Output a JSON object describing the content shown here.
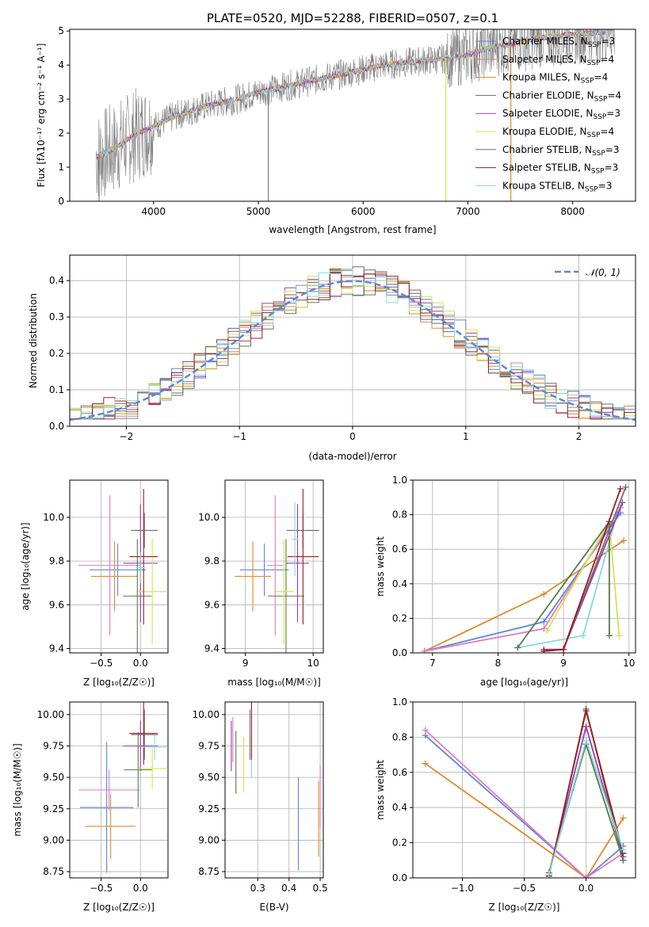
{
  "colors": {
    "chabrier_miles": "#5e86d6",
    "salpeter_miles": "#e0826f",
    "kroupa_miles": "#e08a2e",
    "chabrier_elodie": "#567c4f",
    "salpeter_elodie": "#9b3ab6",
    "kroupa_elodie": "#d4e44b",
    "chabrier_stelib": "#6e6e6e",
    "salpeter_stelib": "#9c1c1c",
    "kroupa_stelib": "#84dada",
    "pink": "#e379c2",
    "normal_curve": "#5e86d6"
  },
  "chart_data": [
    {
      "id": "spectrum",
      "type": "line",
      "title": "PLATE=0520, MJD=52288, FIBERID=0507, z=0.1",
      "xlabel": "wavelength [Angstrom, rest frame]",
      "ylabel": "Flux [f_λ 10^-17 erg cm^-2 s^-1 A^-1]",
      "xlim": [
        3200,
        8600
      ],
      "ylim": [
        0,
        5.05
      ],
      "xticks": [
        "4000",
        "5000",
        "6000",
        "7000",
        "8000"
      ],
      "yticks": [
        "0",
        "1",
        "2",
        "3",
        "4",
        "5"
      ],
      "legend_position": "right",
      "legend": [
        {
          "label": "Chabrier MILES, N",
          "sub": "SSP",
          "tail": "=3",
          "color_key": "chabrier_miles"
        },
        {
          "label": "Salpeter MILES, N",
          "sub": "SSP",
          "tail": "=4",
          "color_key": "salpeter_miles"
        },
        {
          "label": "Kroupa MILES, N",
          "sub": "SSP",
          "tail": "=4",
          "color_key": "kroupa_miles"
        },
        {
          "label": "Chabrier ELODIE, N",
          "sub": "SSP",
          "tail": "=4",
          "color_key": "chabrier_elodie"
        },
        {
          "label": "Salpeter ELODIE, N",
          "sub": "SSP",
          "tail": "=3",
          "color_key": "salpeter_elodie"
        },
        {
          "label": "Kroupa ELODIE, N",
          "sub": "SSP",
          "tail": "=4",
          "color_key": "kroupa_elodie"
        },
        {
          "label": "Chabrier STELIB, N",
          "sub": "SSP",
          "tail": "=3",
          "color_key": "chabrier_stelib"
        },
        {
          "label": "Salpeter STELIB, N",
          "sub": "SSP",
          "tail": "=3",
          "color_key": "salpeter_stelib"
        },
        {
          "label": "Kroupa STELIB, N",
          "sub": "SSP",
          "tail": "=3",
          "color_key": "kroupa_stelib"
        }
      ],
      "x": [
        3450,
        3600,
        3800,
        4000,
        4200,
        4500,
        4800,
        5000,
        5300,
        5600,
        5900,
        6200,
        6500,
        6800,
        7000,
        7200,
        7400,
        7700,
        8000,
        8400
      ],
      "model_y": [
        1.3,
        1.5,
        1.9,
        2.2,
        2.5,
        2.8,
        3.0,
        3.2,
        3.4,
        3.6,
        3.8,
        4.0,
        4.1,
        4.2,
        4.3,
        4.5,
        4.6,
        4.8,
        4.9,
        5.0
      ],
      "spikes": [
        {
          "x": 3480,
          "y": 0
        },
        {
          "x": 5095,
          "y": 0
        },
        {
          "x": 6790,
          "y": 0
        },
        {
          "x": 7410,
          "y": 0
        }
      ]
    },
    {
      "id": "residuals",
      "type": "histogram",
      "xlabel": "(data-model)/error",
      "ylabel": "Normed distribution",
      "xlim": [
        -2.5,
        2.5
      ],
      "ylim": [
        0,
        0.47
      ],
      "xticks": [
        "−2",
        "−1",
        "0",
        "1",
        "2"
      ],
      "yticks": [
        "0.0",
        "0.1",
        "0.2",
        "0.3",
        "0.4"
      ],
      "bin_width": 0.1,
      "legend": "𝒩(0, 1)",
      "legend_position": "top-right",
      "curve": {
        "type": "normal",
        "mean": 0,
        "sigma": 1
      }
    },
    {
      "id": "age_vs_z",
      "type": "errorbar",
      "xlabel": "Z [log₁₀(Z/Z☉)]",
      "ylabel": "age  [log₁₀(age/yr)]",
      "xlim": [
        -0.9,
        0.35
      ],
      "ylim": [
        9.38,
        10.17
      ],
      "xticks": [
        "−0.5",
        "0.0"
      ],
      "yticks": [
        "9.4",
        "9.6",
        "9.8",
        "10.0"
      ],
      "points": [
        {
          "color_key": "chabrier_miles",
          "x": -0.29,
          "xerr": 0.36,
          "y": 9.76,
          "yerr": 0.12
        },
        {
          "color_key": "pink",
          "x": -0.39,
          "xerr": 0.4,
          "y": 9.78,
          "yerr": 0.32
        },
        {
          "color_key": "kroupa_miles",
          "x": -0.33,
          "xerr": 0.3,
          "y": 9.73,
          "yerr": 0.16
        },
        {
          "color_key": "chabrier_elodie",
          "x": -0.04,
          "xerr": 0.18,
          "y": 9.64,
          "yerr": 0.26
        },
        {
          "color_key": "salpeter_elodie",
          "x": 0.0,
          "xerr": 0.22,
          "y": 9.79,
          "yerr": 0.27
        },
        {
          "color_key": "kroupa_elodie",
          "x": 0.15,
          "xerr": 0.18,
          "y": 9.66,
          "yerr": 0.24
        },
        {
          "color_key": "chabrier_stelib",
          "x": 0.05,
          "xerr": 0.17,
          "y": 9.94,
          "yerr": 0.08
        },
        {
          "color_key": "salpeter_stelib",
          "x": 0.04,
          "xerr": 0.18,
          "y": 9.82,
          "yerr": 0.31
        },
        {
          "color_key": "kroupa_stelib",
          "x": 0.0,
          "xerr": 0.06,
          "y": 9.77,
          "yerr": 0.07
        }
      ]
    },
    {
      "id": "age_vs_mass",
      "type": "errorbar",
      "xlabel": "mass [log₁₀(M/M☉)]",
      "ylabel": "",
      "xlim": [
        8.7,
        10.15
      ],
      "ylim": [
        9.38,
        10.17
      ],
      "xticks": [
        "9",
        "10"
      ],
      "yticks": [
        "9.4",
        "9.6",
        "9.8",
        "10.0"
      ],
      "points": [
        {
          "color_key": "chabrier_miles",
          "x": 9.28,
          "xerr": 0.36,
          "y": 9.76,
          "yerr": 0.12
        },
        {
          "color_key": "pink",
          "x": 9.44,
          "xerr": 0.12,
          "y": 9.78,
          "yerr": 0.32
        },
        {
          "color_key": "kroupa_miles",
          "x": 9.11,
          "xerr": 0.27,
          "y": 9.73,
          "yerr": 0.16
        },
        {
          "color_key": "chabrier_elodie",
          "x": 9.6,
          "xerr": 0.27,
          "y": 9.64,
          "yerr": 0.26
        },
        {
          "color_key": "salpeter_elodie",
          "x": 9.77,
          "xerr": 0.17,
          "y": 9.79,
          "yerr": 0.27
        },
        {
          "color_key": "kroupa_elodie",
          "x": 9.57,
          "xerr": 0.15,
          "y": 9.66,
          "yerr": 0.24
        },
        {
          "color_key": "chabrier_stelib",
          "x": 9.85,
          "xerr": 0.24,
          "y": 9.94,
          "yerr": 0.08
        },
        {
          "color_key": "salpeter_stelib",
          "x": 9.85,
          "xerr": 0.23,
          "y": 9.82,
          "yerr": 0.31
        },
        {
          "color_key": "kroupa_stelib",
          "x": 9.73,
          "xerr": 0.05,
          "y": 9.9,
          "yerr": 0.17
        }
      ]
    },
    {
      "id": "weight_vs_age",
      "type": "line",
      "xlabel": "age  [log₁₀(age/yr)]",
      "ylabel": "mass weight",
      "xlim": [
        6.7,
        10.1
      ],
      "ylim": [
        0,
        1.0
      ],
      "xticks": [
        "7",
        "8",
        "9",
        "10"
      ],
      "yticks": [
        "0.0",
        "0.2",
        "0.4",
        "0.6",
        "0.8",
        "1.0"
      ],
      "series": [
        {
          "color_key": "kroupa_miles",
          "x": [
            6.88,
            8.7,
            9.92
          ],
          "y": [
            0.01,
            0.34,
            0.65
          ]
        },
        {
          "color_key": "chabrier_miles",
          "x": [
            6.88,
            8.7,
            9.87
          ],
          "y": [
            0.01,
            0.18,
            0.81
          ]
        },
        {
          "color_key": "pink",
          "x": [
            6.88,
            8.7,
            9.87
          ],
          "y": [
            0.01,
            0.14,
            0.84
          ]
        },
        {
          "color_key": "kroupa_stelib",
          "x": [
            8.3,
            9.3,
            9.8
          ],
          "y": [
            0.03,
            0.1,
            0.78
          ]
        },
        {
          "color_key": "kroupa_elodie",
          "x": [
            8.75,
            9.7,
            9.85
          ],
          "y": [
            0.13,
            0.76,
            0.1
          ]
        },
        {
          "color_key": "chabrier_elodie",
          "x": [
            8.3,
            9.7,
            9.7
          ],
          "y": [
            0.03,
            0.76,
            0.1
          ]
        },
        {
          "color_key": "salpeter_elodie",
          "x": [
            8.7,
            9.0,
            9.9
          ],
          "y": [
            0.02,
            0.02,
            0.87
          ]
        },
        {
          "color_key": "chabrier_stelib",
          "x": [
            8.7,
            9.0,
            9.95
          ],
          "y": [
            0.01,
            0.02,
            0.96
          ]
        },
        {
          "color_key": "salpeter_stelib",
          "x": [
            8.7,
            9.0,
            9.87
          ],
          "y": [
            0.01,
            0.02,
            0.95
          ]
        }
      ]
    },
    {
      "id": "mass_vs_z",
      "type": "errorbar",
      "xlabel": "Z [log₁₀(Z/Z☉)]",
      "ylabel": "mass [log₁₀(M/M☉)]",
      "xlim": [
        -0.9,
        0.35
      ],
      "ylim": [
        8.7,
        10.1
      ],
      "xticks": [
        "−0.5",
        "0.0"
      ],
      "yticks": [
        "8.75",
        "9.00",
        "9.25",
        "9.50",
        "9.75",
        "10.00"
      ],
      "points": [
        {
          "color_key": "chabrier_miles",
          "x": -0.43,
          "xerr": 0.34,
          "y": 9.26,
          "yerr": 0.52
        },
        {
          "color_key": "pink",
          "x": -0.4,
          "xerr": 0.39,
          "y": 9.4,
          "yerr": 0.16
        },
        {
          "color_key": "kroupa_miles",
          "x": -0.38,
          "xerr": 0.32,
          "y": 9.11,
          "yerr": 0.26
        },
        {
          "color_key": "chabrier_elodie",
          "x": -0.03,
          "xerr": 0.18,
          "y": 9.56,
          "yerr": 0.3
        },
        {
          "color_key": "salpeter_elodie",
          "x": 0.0,
          "xerr": 0.22,
          "y": 9.75,
          "yerr": 0.2
        },
        {
          "color_key": "kroupa_elodie",
          "x": 0.15,
          "xerr": 0.18,
          "y": 9.57,
          "yerr": 0.16
        },
        {
          "color_key": "chabrier_stelib",
          "x": 0.05,
          "xerr": 0.17,
          "y": 9.84,
          "yerr": 0.2
        },
        {
          "color_key": "salpeter_stelib",
          "x": 0.04,
          "xerr": 0.18,
          "y": 9.85,
          "yerr": 0.25
        },
        {
          "color_key": "kroupa_stelib",
          "x": 0.18,
          "xerr": 0.15,
          "y": 9.74,
          "yerr": 0.1
        }
      ]
    },
    {
      "id": "mass_vs_ebv",
      "type": "errorbar",
      "xlabel": "E(B-V)",
      "ylabel": "",
      "xlim": [
        0.195,
        0.51
      ],
      "ylim": [
        8.7,
        10.1
      ],
      "xticks": [
        "0.3",
        "0.4",
        "0.5"
      ],
      "yticks": [
        "8.75",
        "9.00",
        "9.25",
        "9.50",
        "9.75",
        "10.00"
      ],
      "points": [
        {
          "color_key": "salpeter_elodie",
          "x": 0.215,
          "xerr": 0,
          "y": 9.75,
          "yerr": 0.2
        },
        {
          "color_key": "pink",
          "x": 0.22,
          "xerr": 0,
          "y": 9.8,
          "yerr": 0.18
        },
        {
          "color_key": "chabrier_elodie",
          "x": 0.23,
          "xerr": 0,
          "y": 9.62,
          "yerr": 0.25
        },
        {
          "color_key": "kroupa_elodie",
          "x": 0.255,
          "xerr": 0,
          "y": 9.6,
          "yerr": 0.22
        },
        {
          "color_key": "chabrier_stelib",
          "x": 0.275,
          "xerr": 0,
          "y": 9.84,
          "yerr": 0.2
        },
        {
          "color_key": "salpeter_stelib",
          "x": 0.28,
          "xerr": 0,
          "y": 9.85,
          "yerr": 0.25
        },
        {
          "color_key": "kroupa_stelib",
          "x": 0.28,
          "xerr": 0,
          "y": 9.57,
          "yerr": 0.07
        },
        {
          "color_key": "chabrier_miles",
          "x": 0.43,
          "xerr": 0,
          "y": 9.13,
          "yerr": 0.37
        },
        {
          "color_key": "kroupa_miles",
          "x": 0.495,
          "xerr": 0,
          "y": 9.17,
          "yerr": 0.3
        },
        {
          "color_key": "pink",
          "x": 0.5,
          "xerr": 0,
          "y": 9.35,
          "yerr": 0.25
        }
      ]
    },
    {
      "id": "weight_vs_z",
      "type": "line",
      "xlabel": "Z [log₁₀(Z/Z☉)]",
      "ylabel": "mass weight",
      "xlim": [
        -1.4,
        0.4
      ],
      "ylim": [
        0,
        1.0
      ],
      "xticks": [
        "−1.0",
        "−0.5",
        "0.0"
      ],
      "yticks": [
        "0.0",
        "0.2",
        "0.4",
        "0.6",
        "0.8",
        "1.0"
      ],
      "series": [
        {
          "color_key": "kroupa_miles",
          "x": [
            -1.3,
            0.0,
            0.3
          ],
          "y": [
            0.65,
            0.0,
            0.34
          ]
        },
        {
          "color_key": "chabrier_miles",
          "x": [
            -1.3,
            0.0,
            0.3
          ],
          "y": [
            0.81,
            0.0,
            0.18
          ]
        },
        {
          "color_key": "pink",
          "x": [
            -1.3,
            0.0,
            0.3
          ],
          "y": [
            0.84,
            0.0,
            0.14
          ]
        },
        {
          "color_key": "kroupa_elodie",
          "x": [
            -0.3,
            0.0,
            0.3
          ],
          "y": [
            0.03,
            0.76,
            0.1
          ]
        },
        {
          "color_key": "chabrier_elodie",
          "x": [
            -0.3,
            0.0,
            0.3
          ],
          "y": [
            0.03,
            0.76,
            0.1
          ]
        },
        {
          "color_key": "salpeter_elodie",
          "x": [
            -0.3,
            0.0,
            0.3
          ],
          "y": [
            0.02,
            0.86,
            0.12
          ]
        },
        {
          "color_key": "chabrier_stelib",
          "x": [
            -0.3,
            0.0,
            0.3
          ],
          "y": [
            0.01,
            0.96,
            0.1
          ]
        },
        {
          "color_key": "salpeter_stelib",
          "x": [
            -0.3,
            0.0,
            0.3
          ],
          "y": [
            0.01,
            0.95,
            0.14
          ]
        },
        {
          "color_key": "kroupa_stelib",
          "x": [
            -0.3,
            0.0,
            0.3
          ],
          "y": [
            0.02,
            0.78,
            0.16
          ]
        }
      ]
    }
  ]
}
